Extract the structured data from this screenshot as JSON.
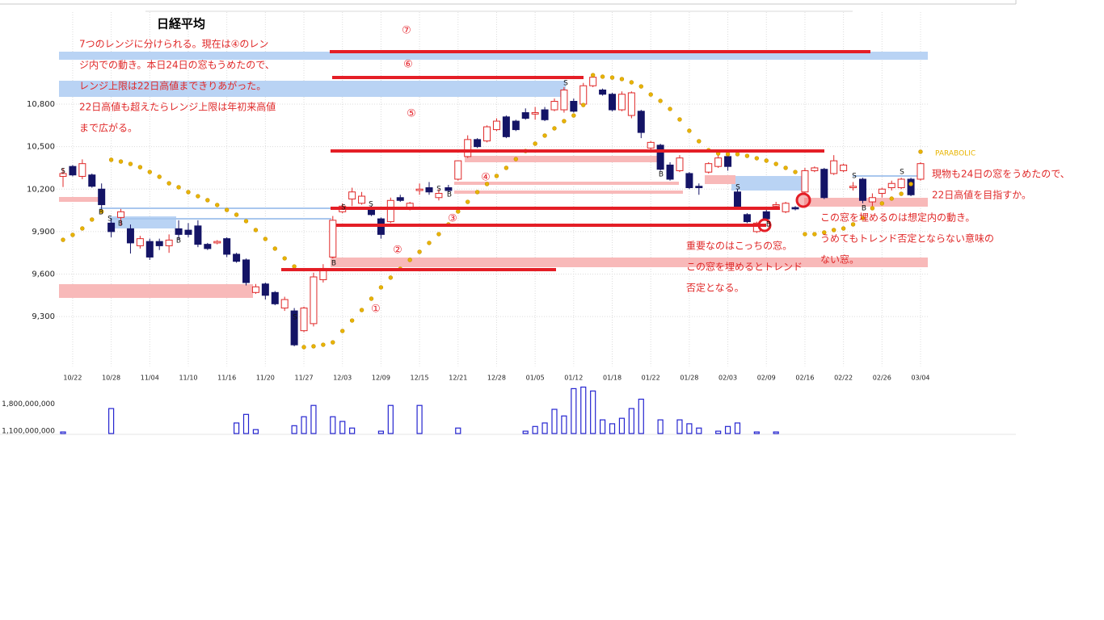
{
  "chart_data": {
    "type": "candlestick",
    "title": "日経平均",
    "categories": [
      null,
      "10/22",
      null,
      null,
      null,
      "10/28",
      null,
      null,
      null,
      "11/04",
      null,
      null,
      null,
      "11/10",
      null,
      null,
      null,
      "11/16",
      null,
      null,
      null,
      "11/20",
      null,
      null,
      null,
      "11/27",
      null,
      null,
      null,
      "12/03",
      null,
      null,
      null,
      "12/09",
      null,
      null,
      null,
      "12/15",
      null,
      null,
      null,
      "12/21",
      null,
      null,
      null,
      "12/28",
      null,
      null,
      null,
      "01/05",
      null,
      null,
      null,
      "01/12",
      null,
      null,
      null,
      "01/18",
      null,
      null,
      null,
      "01/22",
      null,
      null,
      null,
      "01/28",
      null,
      null,
      null,
      "02/03",
      null,
      null,
      null,
      "02/09",
      null,
      null,
      null,
      "02/16",
      null,
      null,
      null,
      "02/22",
      null,
      null,
      null,
      "02/26",
      null,
      null,
      null,
      "03/04"
    ],
    "open": [
      10290,
      10360,
      10290,
      10300,
      10200,
      9960,
      10000,
      9920,
      9800,
      9830,
      9830,
      9800,
      9920,
      9910,
      9940,
      9810,
      9820,
      9850,
      9740,
      9700,
      9470,
      9530,
      9470,
      9360,
      9340,
      9200,
      9250,
      9560,
      9720,
      10040,
      10130,
      10100,
      10060,
      9990,
      9970,
      10140,
      10060,
      10190,
      10210,
      10140,
      10210,
      10270,
      10430,
      10550,
      10540,
      10620,
      10710,
      10680,
      10740,
      10730,
      10760,
      10760,
      10760,
      10820,
      10800,
      10930,
      10900,
      10870,
      10760,
      10720,
      10750,
      10490,
      10510,
      10370,
      10330,
      10310,
      10220,
      10320,
      10360,
      10430,
      10180,
      10020,
      9900,
      10040,
      10080,
      10040,
      10070,
      10180,
      10330,
      10340,
      10310,
      10330,
      10210,
      10270,
      10110,
      10170,
      10210,
      10210,
      10270,
      10270
    ],
    "high": [
      10350,
      10370,
      10410,
      10310,
      10240,
      9990,
      10060,
      9950,
      9870,
      9850,
      9850,
      9880,
      9980,
      9960,
      9980,
      9820,
      9840,
      9860,
      9750,
      9710,
      9530,
      9540,
      9480,
      9440,
      9360,
      9370,
      9610,
      9670,
      10010,
      10100,
      10210,
      10180,
      10080,
      10000,
      10140,
      10160,
      10110,
      10240,
      10250,
      10200,
      10230,
      10400,
      10580,
      10560,
      10650,
      10700,
      10720,
      10690,
      10770,
      10780,
      10780,
      10840,
      10920,
      10840,
      10950,
      11000,
      10910,
      10880,
      10890,
      10890,
      10760,
      10540,
      10520,
      10390,
      10440,
      10320,
      10240,
      10390,
      10440,
      10450,
      10200,
      10030,
      9970,
      10060,
      10110,
      10110,
      10080,
      10350,
      10360,
      10350,
      10440,
      10380,
      10250,
      10280,
      10170,
      10210,
      10260,
      10280,
      10280,
      10390
    ],
    "low": [
      10215,
      10290,
      10270,
      10210,
      10060,
      9860,
      9940,
      9745,
      9780,
      9700,
      9770,
      9750,
      9840,
      9860,
      9790,
      9770,
      9810,
      9720,
      9680,
      9520,
      9460,
      9420,
      9380,
      9340,
      9090,
      9190,
      9230,
      9540,
      9710,
      10030,
      10080,
      10090,
      10010,
      9850,
      9960,
      10110,
      10050,
      10160,
      10160,
      10120,
      10180,
      10260,
      10420,
      10490,
      10530,
      10610,
      10560,
      10610,
      10690,
      10690,
      10680,
      10750,
      10740,
      10740,
      10790,
      10920,
      10860,
      10750,
      10750,
      10700,
      10560,
      10460,
      10330,
      10260,
      10320,
      10200,
      10160,
      10310,
      10350,
      10330,
      10060,
      9960,
      9890,
      9980,
      10070,
      10030,
      10050,
      10170,
      10320,
      10130,
      10300,
      10320,
      10190,
      10100,
      10080,
      10140,
      10190,
      10200,
      10150,
      10260
    ],
    "close": [
      10310,
      10300,
      10380,
      10220,
      10090,
      9900,
      10040,
      9820,
      9850,
      9720,
      9800,
      9840,
      9880,
      9880,
      9810,
      9780,
      9830,
      9740,
      9690,
      9540,
      9510,
      9450,
      9390,
      9420,
      9100,
      9360,
      9580,
      9640,
      9980,
      10080,
      10180,
      10150,
      10020,
      9880,
      10120,
      10120,
      10100,
      10200,
      10180,
      10170,
      10190,
      10400,
      10550,
      10500,
      10640,
      10680,
      10570,
      10620,
      10700,
      10740,
      10690,
      10820,
      10900,
      10750,
      10930,
      10990,
      10870,
      10760,
      10870,
      10880,
      10600,
      10530,
      10340,
      10270,
      10420,
      10210,
      10210,
      10380,
      10420,
      10360,
      10070,
      9970,
      9960,
      9990,
      10090,
      10100,
      10060,
      10330,
      10350,
      10140,
      10400,
      10370,
      10220,
      10120,
      10140,
      10200,
      10240,
      10270,
      10160,
      10380
    ],
    "color_up": "#e02828",
    "color_down": "#141466",
    "ylim": [
      8950,
      11450
    ],
    "yticks": [
      {
        "value": 9300,
        "label": "9,300"
      },
      {
        "value": 9600,
        "label": "9,600"
      },
      {
        "value": 9900,
        "label": "9,900"
      },
      {
        "value": 10200,
        "label": "10,200"
      },
      {
        "value": 10500,
        "label": "10,500"
      },
      {
        "value": 10800,
        "label": "10,800"
      }
    ],
    "grid": true,
    "sar": {
      "name": "PARABOLIC",
      "color": "#e8b400",
      "values": [
        9842,
        9877,
        9922,
        9985,
        10042,
        10407,
        10395,
        10378,
        10355,
        10321,
        10287,
        10241,
        10213,
        10179,
        10150,
        10122,
        10088,
        10053,
        10019,
        9974,
        9911,
        9848,
        9780,
        9711,
        9654,
        9084,
        9090,
        9101,
        9118,
        9198,
        9272,
        9346,
        9426,
        9506,
        9575,
        9637,
        9700,
        9757,
        9820,
        9882,
        9951,
        10042,
        10110,
        10179,
        10236,
        10293,
        10350,
        10412,
        10469,
        10521,
        10578,
        10629,
        10680,
        10720,
        10794,
        11005,
        10994,
        10988,
        10977,
        10954,
        10925,
        10868,
        10823,
        10766,
        10692,
        10612,
        10538,
        10475,
        10452,
        10447,
        10447,
        10435,
        10418,
        10401,
        10378,
        10350,
        10321,
        9882,
        9882,
        9894,
        9911,
        9922,
        9951,
        9996,
        10065,
        10099,
        10133,
        10167,
        10236,
        10464
      ]
    },
    "volume": {
      "color": "#2424d0",
      "values": [
        1080000000,
        null,
        null,
        null,
        null,
        1680000000,
        null,
        null,
        null,
        null,
        null,
        null,
        null,
        null,
        null,
        null,
        null,
        null,
        1310000000,
        1530000000,
        1140000000,
        null,
        null,
        null,
        1240000000,
        1470000000,
        1760000000,
        null,
        1470000000,
        1350000000,
        1180000000,
        null,
        null,
        1100000000,
        1760000000,
        null,
        null,
        1760000000,
        null,
        null,
        null,
        1180000000,
        null,
        null,
        null,
        null,
        null,
        null,
        1100000000,
        1220000000,
        1310000000,
        1660000000,
        1490000000,
        2190000000,
        2230000000,
        2130000000,
        1390000000,
        1290000000,
        1430000000,
        1680000000,
        1920000000,
        null,
        1390000000,
        null,
        1390000000,
        1290000000,
        1180000000,
        null,
        1100000000,
        1220000000,
        1310000000,
        null,
        1080000000,
        null,
        1080000000,
        null,
        null,
        null,
        null,
        null,
        null,
        null,
        null,
        null,
        null,
        null,
        null,
        null,
        null,
        null
      ]
    },
    "volume_ylim": [
      1040000000,
      2240000000
    ],
    "volume_ticks": [
      {
        "value": 1800000000,
        "label": "1,800,000,000"
      },
      {
        "value": 1100000000,
        "label": "1,100,000,000"
      }
    ]
  },
  "annotations": {
    "range_labels": [
      "①",
      "②",
      "③",
      "④",
      "⑤",
      "⑥",
      "⑦"
    ],
    "notes": [
      [
        "7つのレンジに分けられる。現在は④のレン",
        "ジ内での動き。本日24日の窓もうめたので、",
        "レンジ上限は22日高値まできりあがった。",
        "22日高値も超えたらレンジ上限は年初来高値",
        "まで広がる。"
      ],
      [
        "重要なのはこっちの窓。",
        "この窓を埋めるとトレンド",
        "否定となる。"
      ],
      [
        "この窓を埋めるのは想定内の動き。",
        "うめてもトレンド否定とならない意味の",
        "ない窓。"
      ],
      [
        "現物も24日の窓をうめたので、",
        "22日高値を目指すか。"
      ]
    ],
    "signals": [
      "S",
      "B",
      "S",
      "B",
      "B",
      "S",
      "B",
      "S",
      "S",
      "S",
      "B",
      "S",
      "B",
      "S",
      "B",
      "S",
      "B",
      "S"
    ]
  }
}
